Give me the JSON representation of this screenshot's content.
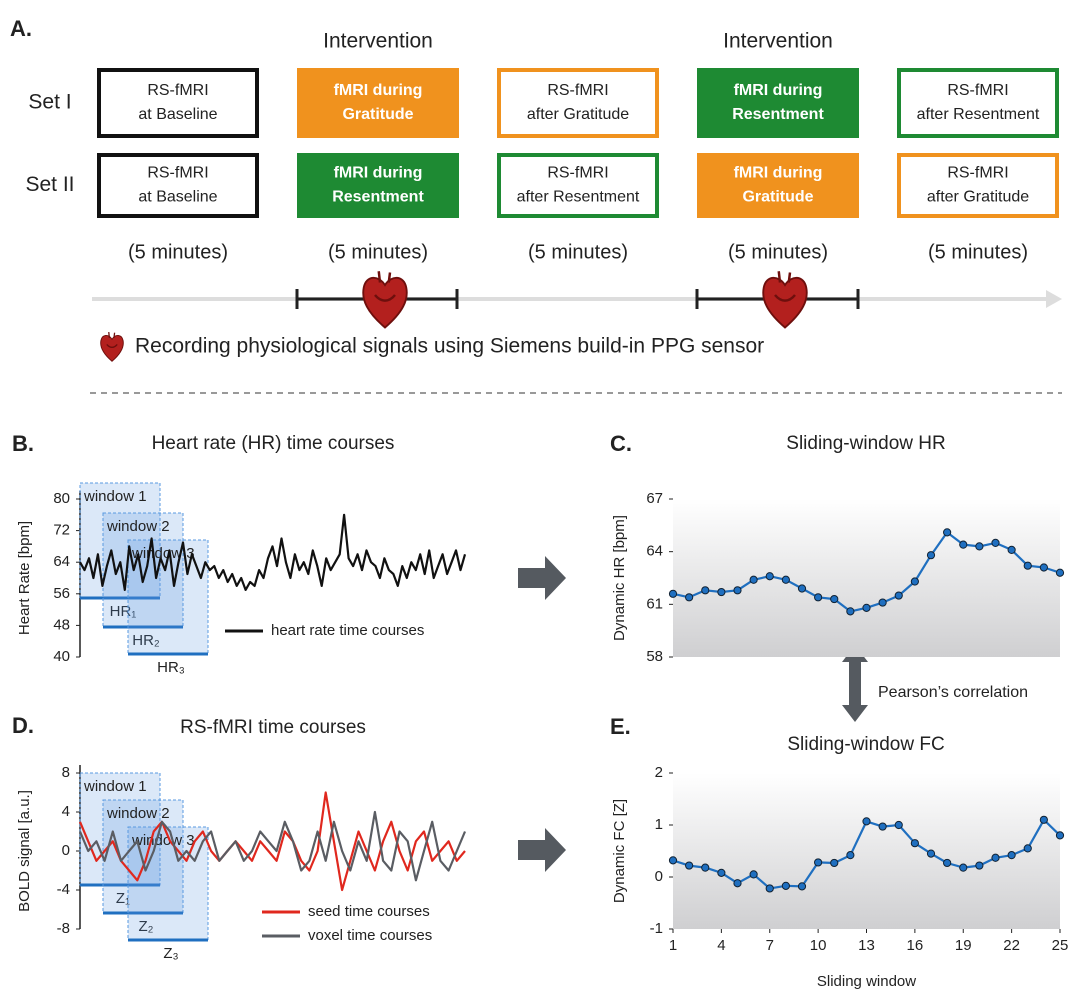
{
  "panel_a": {
    "label": "A.",
    "interventions": [
      "Intervention",
      "Intervention"
    ],
    "sets": [
      {
        "label": "Set I",
        "boxes": [
          [
            "RS-fMRI",
            "at Baseline"
          ],
          [
            "fMRI during",
            "Gratitude"
          ],
          [
            "RS-fMRI",
            "after Gratitude"
          ],
          [
            "fMRI during",
            "Resentment"
          ],
          [
            "RS-fMRI",
            "after Resentment"
          ]
        ]
      },
      {
        "label": "Set II",
        "boxes": [
          [
            "RS-fMRI",
            "at Baseline"
          ],
          [
            "fMRI during",
            "Resentment"
          ],
          [
            "RS-fMRI",
            "after Resentment"
          ],
          [
            "fMRI during",
            "Gratitude"
          ],
          [
            "RS-fMRI",
            "after Gratitude"
          ]
        ]
      }
    ],
    "durations": [
      "(5 minutes)",
      "(5 minutes)",
      "(5 minutes)",
      "(5 minutes)",
      "(5 minutes)"
    ],
    "legend": "Recording physiological signals using Siemens build-in PPG sensor"
  },
  "between_panels": {
    "correlation": "Pearson’s correlation"
  },
  "chart_data": [
    {
      "type": "line",
      "panel": "B.",
      "title": "Heart rate (HR) time courses",
      "ylabel": "Heart Rate [bpm]",
      "ylim": [
        40,
        80
      ],
      "yticks": [
        40,
        48,
        56,
        64,
        72,
        80
      ],
      "windows": [
        "window 1",
        "window 2",
        "window 3"
      ],
      "window_values": [
        "HR₁",
        "HR₂",
        "HR₃"
      ],
      "series": [
        {
          "name": "heart rate time courses",
          "color": "#111111",
          "values": [
            64,
            62,
            65,
            60,
            66,
            58,
            63,
            67,
            61,
            64,
            57,
            68,
            62,
            66,
            59,
            63,
            70,
            60,
            65,
            62,
            67,
            58,
            64,
            69,
            61,
            66,
            63,
            60,
            64,
            62,
            63,
            60,
            62,
            59,
            61,
            58,
            60,
            57,
            59,
            58,
            62,
            60,
            65,
            68,
            63,
            70,
            64,
            60,
            66,
            62,
            64,
            61,
            67,
            63,
            58,
            65,
            62,
            64,
            66,
            76,
            65,
            63,
            66,
            62,
            67,
            64,
            63,
            60,
            65,
            62,
            61,
            58,
            63,
            60,
            64,
            62,
            66,
            61,
            67,
            60,
            63,
            66,
            61,
            64,
            67,
            62,
            66
          ]
        }
      ]
    },
    {
      "type": "line",
      "panel": "D.",
      "title": "RS-fMRI time courses",
      "ylabel": "BOLD signal [a.u.]",
      "ylim": [
        -8,
        8
      ],
      "yticks": [
        -8,
        -4,
        0,
        4,
        8
      ],
      "windows": [
        "window 1",
        "window 2",
        "window 3"
      ],
      "window_values": [
        "Z₁",
        "Z₂",
        "Z₃"
      ],
      "series": [
        {
          "name": "seed time courses",
          "color": "#e0281e",
          "values": [
            3,
            1,
            -1,
            0,
            1,
            -1,
            -2,
            -3,
            -1,
            2,
            3,
            1,
            0,
            -1,
            1,
            2,
            0,
            -1,
            0,
            1,
            0,
            -1,
            1,
            0,
            -1,
            2,
            1,
            -1,
            -2,
            0,
            6,
            1,
            -4,
            -1,
            2,
            0,
            -2,
            1,
            3,
            0,
            -2,
            1,
            2,
            -1,
            0,
            1,
            -1,
            0
          ]
        },
        {
          "name": "voxel time courses",
          "color": "#5a5d63",
          "values": [
            2,
            0,
            1,
            -1,
            2,
            -1,
            0,
            1,
            -2,
            0,
            3,
            2,
            -1,
            0,
            -1,
            1,
            2,
            -1,
            0,
            1,
            -1,
            0,
            2,
            1,
            0,
            3,
            1,
            -2,
            -1,
            2,
            -1,
            3,
            0,
            -2,
            1,
            -1,
            4,
            -1,
            -2,
            2,
            1,
            -3,
            0,
            3,
            -1,
            -2,
            0,
            2
          ]
        }
      ]
    },
    {
      "type": "line",
      "panel": "C.",
      "title": "Sliding-window HR",
      "ylabel": "Dynamic HR [bpm]",
      "ylim": [
        58,
        67
      ],
      "yticks": [
        58,
        61,
        64,
        67
      ],
      "xlim": [
        1,
        25
      ],
      "x": [
        1,
        2,
        3,
        4,
        5,
        6,
        7,
        8,
        9,
        10,
        11,
        12,
        13,
        14,
        15,
        16,
        17,
        18,
        19,
        20,
        21,
        22,
        23,
        24,
        25
      ],
      "series": [
        {
          "color": "#1f6fc0",
          "values": [
            61.6,
            61.4,
            61.8,
            61.7,
            61.8,
            62.4,
            62.6,
            62.4,
            61.9,
            61.4,
            61.3,
            60.6,
            60.8,
            61.1,
            61.5,
            62.3,
            63.8,
            65.1,
            64.4,
            64.3,
            64.5,
            64.1,
            63.2,
            63.1,
            62.8
          ]
        }
      ]
    },
    {
      "type": "line",
      "panel": "E.",
      "title": "Sliding-window FC",
      "ylabel": "Dynamic FC [Z]",
      "xlabel": "Sliding window",
      "ylim": [
        -1,
        2
      ],
      "yticks": [
        -1,
        0,
        1,
        2
      ],
      "xlim": [
        1,
        25
      ],
      "xticks": [
        1,
        4,
        7,
        10,
        13,
        16,
        19,
        22,
        25
      ],
      "x": [
        1,
        2,
        3,
        4,
        5,
        6,
        7,
        8,
        9,
        10,
        11,
        12,
        13,
        14,
        15,
        16,
        17,
        18,
        19,
        20,
        21,
        22,
        23,
        24,
        25
      ],
      "series": [
        {
          "color": "#1f6fc0",
          "values": [
            0.32,
            0.22,
            0.18,
            0.08,
            -0.12,
            0.05,
            -0.22,
            -0.17,
            -0.18,
            0.28,
            0.27,
            0.42,
            1.07,
            0.97,
            1.0,
            0.65,
            0.45,
            0.27,
            0.18,
            0.22,
            0.37,
            0.42,
            0.55,
            1.1,
            0.8
          ]
        }
      ]
    }
  ]
}
